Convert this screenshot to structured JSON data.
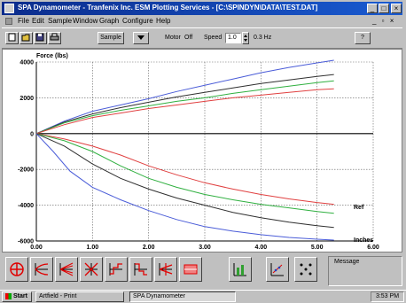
{
  "window": {
    "title": "SPA Dynamometer   -   Tranfenix Inc. ESM Plotting Services - [C:\\SPINDYN\\DATA\\TEST.DAT]",
    "minimize_label": "_",
    "maximize_label": "□",
    "close_label": "×"
  },
  "menu": [
    "File",
    "Edit",
    "Sample",
    "Window",
    "Graph",
    "Configure",
    "Help"
  ],
  "mdi_controls": "_ ▫ ×",
  "toolbar": {
    "sample_label": "Sample",
    "speed_label": "Speed",
    "speed_value": "1.0",
    "speed_unit": "0.3 Hz",
    "motor_label": "Motor",
    "motor_state": "Off",
    "help_label": "?"
  },
  "chart_data": {
    "type": "line",
    "title": "",
    "ylabel": "Force (lbs)",
    "xlabel": "Inches",
    "annotation": "Ref",
    "xlim": [
      0,
      6
    ],
    "ylim": [
      -6000,
      4000
    ],
    "x_ticks": [
      "0.00",
      "1.00",
      "2.00",
      "3.00",
      "4.00",
      "5.00",
      "6.00"
    ],
    "y_ticks": [
      "4000",
      "2000",
      "0",
      "-2000",
      "-4000",
      "-6000"
    ],
    "grid": true,
    "series": [
      {
        "color": "#4a5cd8",
        "x": [
          0,
          0.5,
          1,
          1.5,
          2,
          2.5,
          3,
          3.5,
          4,
          4.5,
          5,
          5.3
        ],
        "values": [
          0,
          700,
          1250,
          1600,
          1950,
          2350,
          2700,
          3050,
          3400,
          3700,
          3950,
          4100
        ]
      },
      {
        "color": "#303030",
        "x": [
          0,
          0.5,
          1,
          1.5,
          2,
          2.5,
          3,
          3.5,
          4,
          4.5,
          5,
          5.3
        ],
        "values": [
          0,
          650,
          1100,
          1450,
          1750,
          2050,
          2300,
          2550,
          2800,
          3000,
          3200,
          3300
        ]
      },
      {
        "color": "#30b040",
        "x": [
          0,
          0.5,
          1,
          1.5,
          2,
          2.5,
          3,
          3.5,
          4,
          4.5,
          5,
          5.3
        ],
        "values": [
          0,
          600,
          1000,
          1300,
          1550,
          1800,
          2000,
          2250,
          2450,
          2650,
          2850,
          2950
        ]
      },
      {
        "color": "#e04040",
        "x": [
          0,
          0.5,
          1,
          1.5,
          2,
          2.5,
          3,
          3.5,
          4,
          4.5,
          5,
          5.3
        ],
        "values": [
          0,
          500,
          900,
          1150,
          1400,
          1600,
          1800,
          2000,
          2150,
          2300,
          2450,
          2500
        ]
      },
      {
        "color": "#e04040",
        "x": [
          0,
          0.5,
          1,
          1.5,
          2,
          2.5,
          3,
          3.5,
          4,
          4.5,
          5,
          5.3
        ],
        "values": [
          0,
          -300,
          -700,
          -1200,
          -1800,
          -2300,
          -2750,
          -3100,
          -3400,
          -3650,
          -3850,
          -3950
        ]
      },
      {
        "color": "#30b040",
        "x": [
          0,
          0.5,
          1,
          1.5,
          2,
          2.5,
          3,
          3.5,
          4,
          4.5,
          5,
          5.3
        ],
        "values": [
          0,
          -400,
          -1000,
          -1800,
          -2500,
          -3000,
          -3400,
          -3700,
          -3950,
          -4150,
          -4350,
          -4450
        ]
      },
      {
        "color": "#303030",
        "x": [
          0,
          0.5,
          1,
          1.5,
          2,
          2.5,
          3,
          3.5,
          4,
          4.5,
          5,
          5.3
        ],
        "values": [
          0,
          -700,
          -1700,
          -2500,
          -3100,
          -3600,
          -4000,
          -4400,
          -4700,
          -4950,
          -5150,
          -5250
        ]
      },
      {
        "color": "#4a5cd8",
        "x": [
          0,
          0.3,
          0.6,
          1,
          1.5,
          2,
          2.5,
          3,
          3.5,
          4,
          4.5,
          5,
          5.3
        ],
        "values": [
          0,
          -1000,
          -2100,
          -3000,
          -3700,
          -4300,
          -4800,
          -5200,
          -5450,
          -5650,
          -5800,
          -5900,
          -5950
        ]
      }
    ]
  },
  "bottom_tools": [
    "envelope-tool-icon",
    "rebound-curves-icon",
    "compression-curves-icon",
    "cross-curves-icon",
    "step-plot-icon",
    "step-plot-2-icon",
    "multi-curve-icon",
    "peak-bar-icon",
    "bar-compare-icon",
    "scatter-xy-icon",
    "grid-dots-icon"
  ],
  "message": {
    "label": "Message"
  },
  "taskbar": {
    "start_label": "Start",
    "task1_label": "Artfield - Print",
    "task2_label": "SPA Dynamometer",
    "clock": "3:53 PM"
  }
}
